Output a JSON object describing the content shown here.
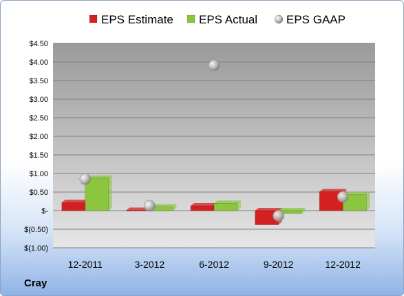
{
  "company": "Cray",
  "chart_data": {
    "type": "bar",
    "categories": [
      "12-2011",
      "3-2012",
      "6-2012",
      "9-2012",
      "12-2012"
    ],
    "series": [
      {
        "name": "EPS Estimate",
        "kind": "bar",
        "color": "#d42020",
        "values": [
          0.22,
          0.01,
          0.13,
          -0.38,
          0.51
        ]
      },
      {
        "name": "EPS Actual",
        "kind": "bar",
        "color": "#8cc63f",
        "values": [
          0.87,
          0.1,
          0.2,
          -0.08,
          0.43
        ]
      },
      {
        "name": "EPS GAAP",
        "kind": "scatter",
        "color": "#b0b0b0",
        "values": [
          0.85,
          0.13,
          3.91,
          -0.14,
          0.37
        ]
      }
    ],
    "yticks": [
      "$(1.00)",
      "$(0.50)",
      "$-",
      "$0.50",
      "$1.00",
      "$1.50",
      "$2.00",
      "$2.50",
      "$3.00",
      "$3.50",
      "$4.00",
      "$4.50"
    ],
    "ylim": [
      -1.0,
      4.5
    ],
    "grid": true,
    "legend": "top"
  }
}
